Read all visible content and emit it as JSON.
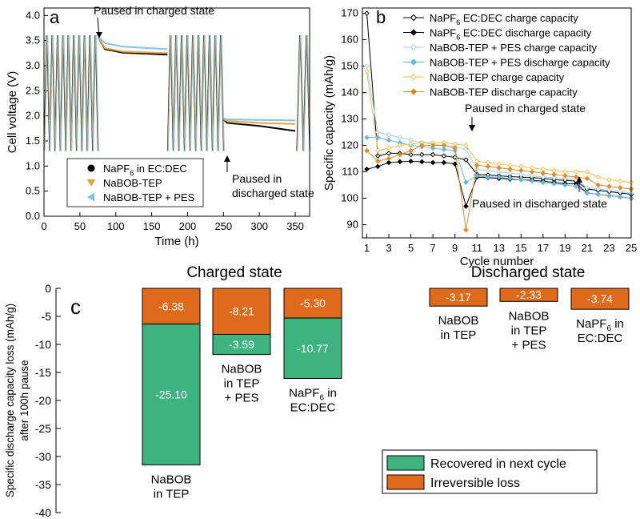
{
  "panels": {
    "a": {
      "label": "a",
      "callout_top": "Paused in charged state",
      "callout_bottom_1": "Paused in",
      "callout_bottom_2": "discharged state"
    },
    "b": {
      "label": "b",
      "callout_charged": "Paused in charged state",
      "callout_discharged": "Paused in discharged state"
    },
    "c": {
      "label": "c"
    }
  },
  "chart_data": [
    {
      "id": "a",
      "type": "line",
      "xlabel": "Time (h)",
      "ylabel": "Cell voltage (V)",
      "xlim": [
        0,
        370
      ],
      "ylim": [
        0,
        4.15
      ],
      "xticks": [
        0,
        50,
        100,
        150,
        200,
        250,
        300,
        350
      ],
      "yticks": [
        0.0,
        0.5,
        1.0,
        1.5,
        2.0,
        2.5,
        3.0,
        3.5,
        4.0
      ],
      "ytick_labels": [
        "0.0",
        "0.5",
        "1.0",
        "1.5",
        "2.0",
        "2.5",
        "3.0",
        "3.5",
        "4.0"
      ],
      "cycling": {
        "vmin": 1.3,
        "vmax": 3.6,
        "segments": [
          [
            0,
            75,
            10
          ],
          [
            172,
            250,
            10
          ],
          [
            352,
            370,
            2
          ]
        ]
      },
      "series": [
        {
          "name": "NaPF6 in EC:DEC",
          "legend_main": "NaPF",
          "legend_sub": "6",
          "legend_rest": " in EC:DEC",
          "color": "#000000",
          "marker": "circle",
          "rest1": [
            [
              76,
              3.55
            ],
            [
              85,
              3.33
            ],
            [
              110,
              3.26
            ],
            [
              172,
              3.22
            ]
          ],
          "rest2": [
            [
              250,
              1.93
            ],
            [
              255,
              1.86
            ],
            [
              300,
              1.8
            ],
            [
              350,
              1.7
            ]
          ]
        },
        {
          "name": "NaBOB-TEP",
          "legend_main": "NaBOB-TEP",
          "legend_sub": "",
          "legend_rest": "",
          "color": "#e8a33d",
          "marker": "triangle-down",
          "rest1": [
            [
              76,
              3.55
            ],
            [
              85,
              3.35
            ],
            [
              110,
              3.28
            ],
            [
              172,
              3.25
            ]
          ],
          "rest2": [
            [
              250,
              1.93
            ],
            [
              255,
              1.9
            ],
            [
              300,
              1.86
            ],
            [
              350,
              1.84
            ]
          ]
        },
        {
          "name": "NaBOB-TEP + PES",
          "legend_main": "NaBOB-TEP + PES",
          "legend_sub": "",
          "legend_rest": "",
          "color": "#7ec4e8",
          "marker": "triangle-left",
          "rest1": [
            [
              76,
              3.57
            ],
            [
              85,
              3.45
            ],
            [
              110,
              3.38
            ],
            [
              172,
              3.33
            ]
          ],
          "rest2": [
            [
              250,
              1.95
            ],
            [
              255,
              1.93
            ],
            [
              300,
              1.92
            ],
            [
              350,
              1.91
            ]
          ]
        }
      ]
    },
    {
      "id": "b",
      "type": "line",
      "xlabel": "Cycle number",
      "ylabel": "Specific capacity (mAh/g)",
      "xlim": [
        0.6,
        25
      ],
      "ylim": [
        85,
        172
      ],
      "xticks": [
        1,
        3,
        5,
        7,
        9,
        11,
        13,
        15,
        17,
        19,
        21,
        23,
        25
      ],
      "yticks": [
        90,
        100,
        110,
        120,
        130,
        140,
        150,
        160,
        170
      ],
      "x": [
        1,
        2,
        3,
        4,
        5,
        6,
        7,
        8,
        9,
        10,
        11,
        12,
        13,
        14,
        15,
        16,
        17,
        18,
        19,
        20,
        21,
        22,
        23,
        24,
        25
      ],
      "series": [
        {
          "name": "NaPF6 EC:DEC charge capacity",
          "legend_main": "NaPF",
          "legend_sub": "6",
          "legend_rest": " EC:DEC charge capacity",
          "color": "#000000",
          "marker": "diamond-open",
          "values": [
            170,
            116,
            117,
            117,
            116.5,
            116.5,
            116.5,
            116,
            115.5,
            114.5,
            109,
            108.8,
            108.5,
            108.2,
            108,
            107.8,
            107.5,
            107,
            106.8,
            106.5,
            103.5,
            103,
            102.5,
            102,
            101.5
          ]
        },
        {
          "name": "NaPF6 EC:DEC discharge capacity",
          "legend_main": "NaPF",
          "legend_sub": "6",
          "legend_rest": " EC:DEC discharge capacity",
          "color": "#000000",
          "marker": "diamond",
          "values": [
            111,
            112,
            113.5,
            113.8,
            114,
            113.8,
            113.5,
            113.5,
            113,
            97,
            108,
            107.8,
            107.5,
            107.2,
            107,
            106.8,
            106.5,
            106,
            105.5,
            105.5,
            102,
            101.5,
            101,
            100.5,
            100
          ]
        },
        {
          "name": "NaBOB-TEP + PES charge capacity",
          "legend_main": "NaBOB-TEP + PES charge capacity",
          "legend_sub": "",
          "legend_rest": "",
          "color": "#9fd3ef",
          "marker": "diamond-open",
          "values": [
            150,
            125,
            124,
            123,
            122,
            121,
            120.5,
            120,
            119.5,
            118.5,
            111,
            110.5,
            110,
            109.5,
            109,
            108.5,
            108,
            107.8,
            107.5,
            107,
            104,
            103.5,
            103,
            102.5,
            102
          ]
        },
        {
          "name": "NaBOB-TEP + PES discharge capacity",
          "legend_main": "NaBOB-TEP + PES discharge capacity",
          "legend_sub": "",
          "legend_rest": "",
          "color": "#6bb7de",
          "marker": "diamond",
          "values": [
            123,
            123,
            122,
            121,
            120,
            119.5,
            119,
            118.5,
            118,
            106,
            108.5,
            108,
            108,
            107.5,
            107,
            106.5,
            106,
            105.5,
            105,
            104.5,
            102,
            101.5,
            101,
            100.5,
            100
          ]
        },
        {
          "name": "NaBOB-TEP charge capacity",
          "legend_main": "NaBOB-TEP charge capacity",
          "legend_sub": "",
          "legend_rest": "",
          "color": "#f2c14e",
          "marker": "diamond-open",
          "values": [
            148,
            118,
            119,
            120,
            120.5,
            121,
            121,
            121,
            120.5,
            120,
            114,
            113.5,
            113,
            112.5,
            112,
            111.5,
            111,
            110.5,
            110,
            110,
            110,
            108,
            107,
            106.5,
            106
          ]
        },
        {
          "name": "NaBOB-TEP discharge capacity",
          "legend_main": "NaBOB-TEP discharge capacity",
          "legend_sub": "",
          "legend_rest": "",
          "color": "#e28d2c",
          "marker": "diamond",
          "values": [
            118,
            114,
            115,
            116.5,
            118,
            120,
            120,
            120,
            119,
            88,
            112.5,
            112,
            111.5,
            111,
            110.5,
            110,
            109.5,
            109,
            108.5,
            108,
            107.5,
            105,
            104.5,
            104,
            103.5
          ]
        }
      ]
    },
    {
      "id": "c",
      "type": "bar",
      "stacked": true,
      "ylabel_line1": "Specific discharge capacity loss (mAh/g)",
      "ylabel_line2": "after 100h pause",
      "ylim": [
        -40,
        0
      ],
      "yticks": [
        0,
        -5,
        -10,
        -15,
        -20,
        -25,
        -30,
        -35,
        -40
      ],
      "group_titles": [
        "Charged state",
        "Discharged state"
      ],
      "legend": [
        {
          "name": "Recovered in next cycle",
          "color": "#3fb37f"
        },
        {
          "name": "Irreversible loss",
          "color": "#e06a1b"
        }
      ],
      "categories": [
        {
          "group": "Charged state",
          "label_lines": [
            "NaBOB",
            "in TEP"
          ],
          "irreversible": -6.38,
          "irreversible_label": "-6.38",
          "recovered": -25.1,
          "recovered_label": "-25.10"
        },
        {
          "group": "Charged state",
          "label_lines": [
            "NaBOB",
            "in TEP",
            "+ PES"
          ],
          "irreversible": -8.21,
          "irreversible_label": "-8.21",
          "recovered": -3.59,
          "recovered_label": "-3.59"
        },
        {
          "group": "Charged state",
          "label_lines": [
            "NaPF6 in",
            "EC:DEC"
          ],
          "irreversible": -5.3,
          "irreversible_label": "-5.30",
          "recovered": -10.77,
          "recovered_label": "-10.77"
        },
        {
          "group": "Discharged state",
          "label_lines": [
            "NaBOB",
            "in TEP"
          ],
          "irreversible": -3.17,
          "irreversible_label": "-3.17",
          "recovered": 0,
          "recovered_label": ""
        },
        {
          "group": "Discharged state",
          "label_lines": [
            "NaBOB",
            "in TEP",
            "+ PES"
          ],
          "irreversible": -2.33,
          "irreversible_label": "-2.33",
          "recovered": 0,
          "recovered_label": ""
        },
        {
          "group": "Discharged state",
          "label_lines": [
            "NaPF6 in",
            "EC:DEC"
          ],
          "irreversible": -3.74,
          "irreversible_label": "-3.74",
          "recovered": 0,
          "recovered_label": ""
        }
      ]
    }
  ]
}
